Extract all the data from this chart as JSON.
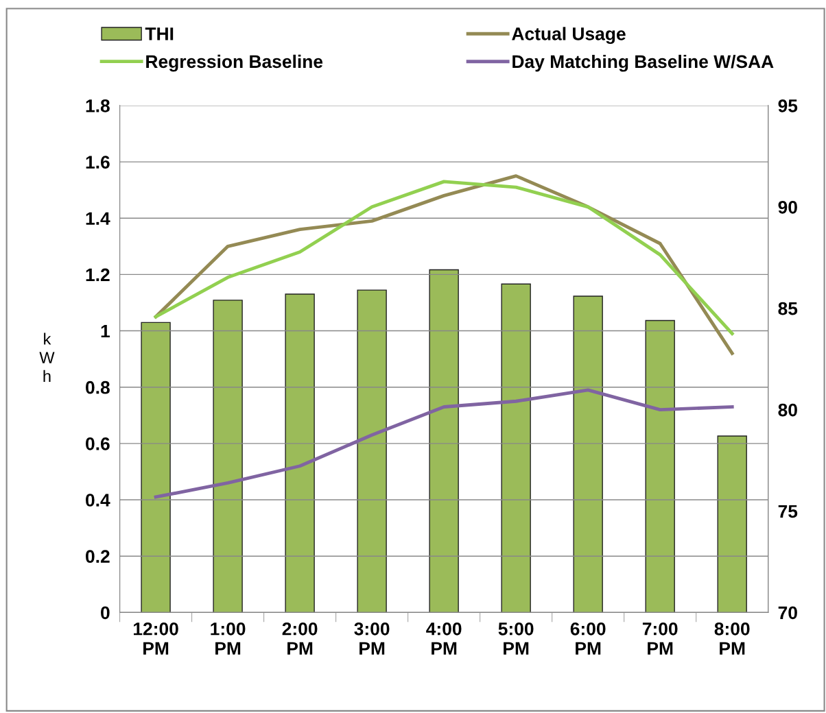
{
  "chart_data": {
    "type": "line",
    "ylabel": "kWh",
    "categories": [
      "12:00\nPM",
      "1:00\nPM",
      "2:00\nPM",
      "3:00\nPM",
      "4:00\nPM",
      "5:00\nPM",
      "6:00\nPM",
      "7:00\nPM",
      "8:00\nPM"
    ],
    "series": [
      {
        "name": "THI",
        "type": "bar",
        "axis": "y2",
        "color": "#9bbb59",
        "values": [
          84.3,
          85.4,
          85.7,
          85.9,
          86.9,
          86.2,
          85.6,
          84.4,
          78.7
        ]
      },
      {
        "name": "Actual Usage",
        "color": "#948a54",
        "values": [
          1.05,
          1.3,
          1.36,
          1.39,
          1.48,
          1.55,
          1.44,
          1.31,
          0.92
        ]
      },
      {
        "name": "Regression Baseline",
        "color": "#92d050",
        "values": [
          1.05,
          1.19,
          1.28,
          1.44,
          1.53,
          1.51,
          1.44,
          1.27,
          0.99
        ]
      },
      {
        "name": "Day Matching Baseline W/SAA",
        "color": "#8064a2",
        "values": [
          0.41,
          0.46,
          0.52,
          0.63,
          0.73,
          0.75,
          0.79,
          0.72,
          0.73
        ]
      }
    ],
    "ylim": [
      0,
      1.8
    ],
    "yticks": [
      0,
      0.2,
      0.4,
      0.6,
      0.8,
      1,
      1.2,
      1.4,
      1.6,
      1.8
    ],
    "y2lim": [
      70,
      95
    ],
    "y2ticks": [
      70,
      75,
      80,
      85,
      90,
      95
    ],
    "grid": "y",
    "legend": "top",
    "marker": "none",
    "line_style": "solid"
  }
}
